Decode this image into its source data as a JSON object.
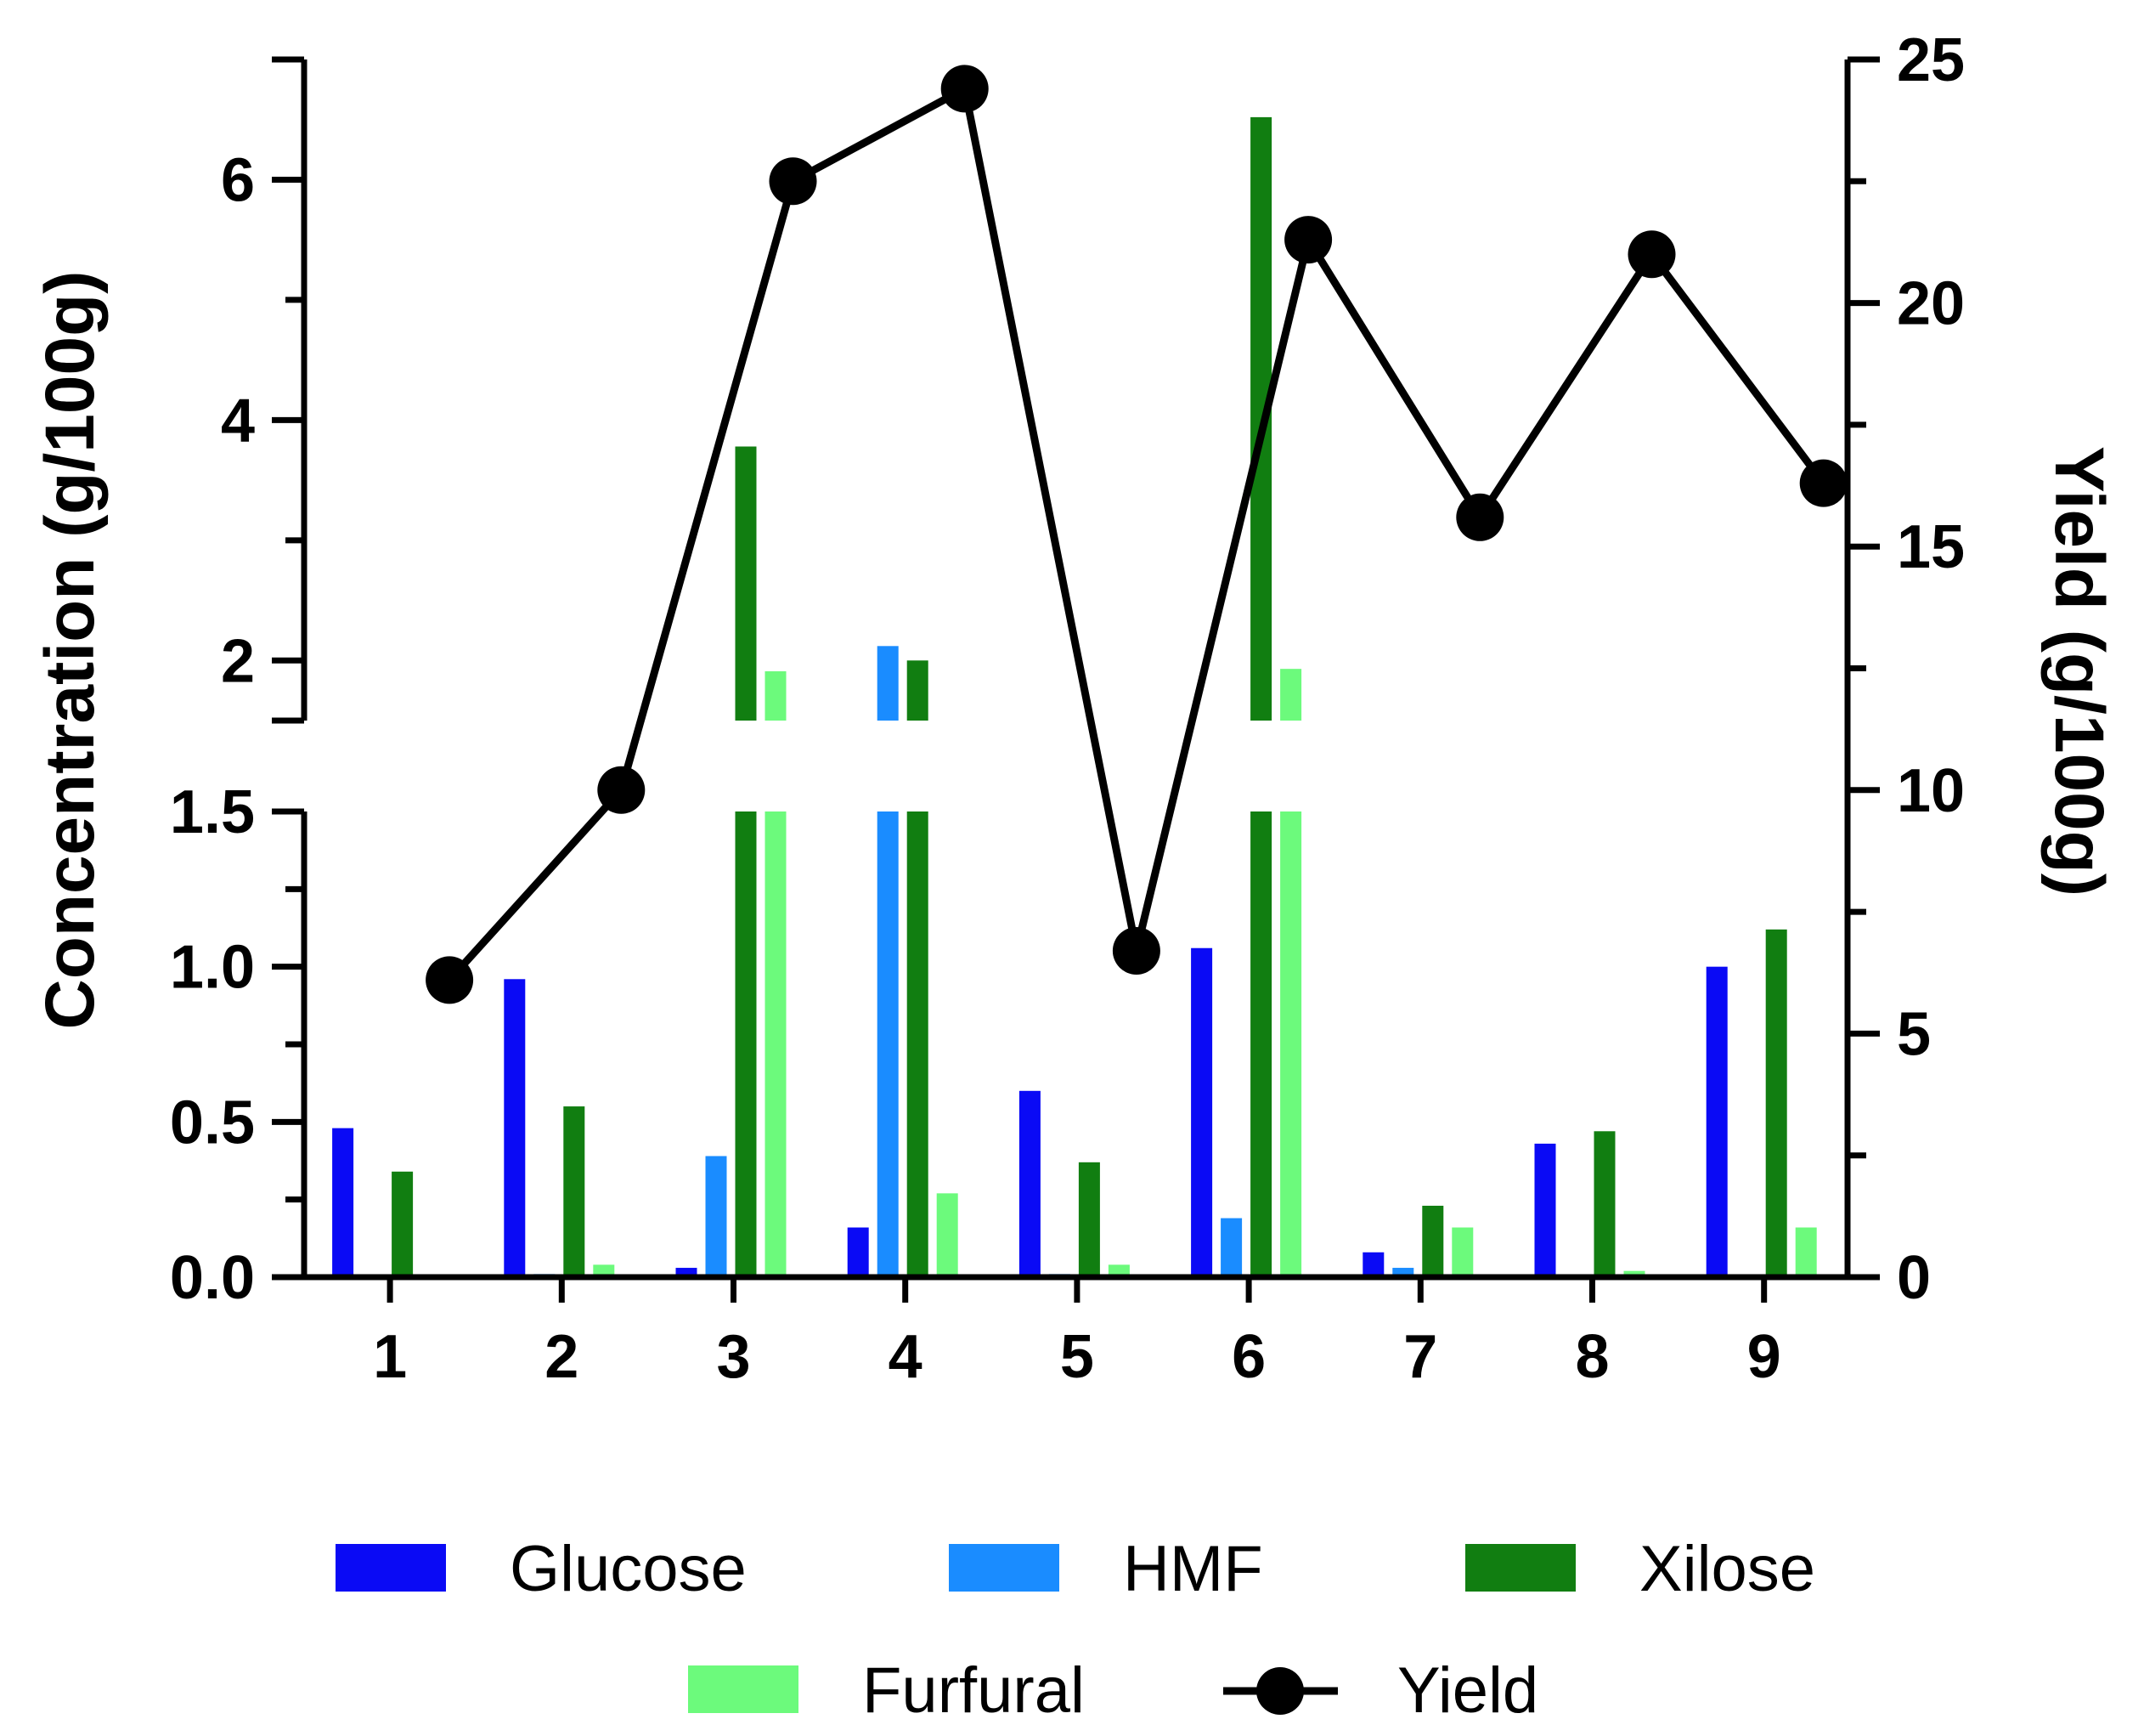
{
  "chart_data": {
    "type": "bar",
    "categories": [
      "1",
      "2",
      "3",
      "4",
      "5",
      "6",
      "7",
      "8",
      "9"
    ],
    "left_axis": {
      "label": "Concentration (g/100g)",
      "broken": true,
      "lower_range": [
        0,
        1.5
      ],
      "upper_range": [
        1.5,
        7
      ],
      "lower_ticks": [
        "0.0",
        "0.5",
        "1.0",
        "1.5"
      ],
      "upper_ticks": [
        "2",
        "4",
        "6"
      ]
    },
    "right_axis": {
      "label": "Yield (g/100g)",
      "range": [
        0,
        25
      ],
      "ticks": [
        "0",
        "5",
        "10",
        "15",
        "20",
        "25"
      ]
    },
    "series": [
      {
        "name": "Glucose",
        "type": "bar",
        "axis": "left",
        "color": "#0A0AF5",
        "values": [
          0.48,
          0.96,
          0.03,
          0.16,
          0.6,
          1.06,
          0.08,
          0.43,
          1.0
        ]
      },
      {
        "name": "HMF",
        "type": "bar",
        "axis": "left",
        "color": "#1A8CFF",
        "values": [
          0.0,
          0.01,
          0.39,
          2.12,
          0.01,
          0.19,
          0.03,
          0.0,
          0.0
        ]
      },
      {
        "name": "Xilose",
        "type": "bar",
        "axis": "left",
        "color": "#117E11",
        "values": [
          0.34,
          0.55,
          3.78,
          2.0,
          0.37,
          6.52,
          0.23,
          0.47,
          1.12
        ]
      },
      {
        "name": "Furfural",
        "type": "bar",
        "axis": "left",
        "color": "#6CFA7C",
        "values": [
          0.0,
          0.04,
          1.91,
          0.27,
          0.04,
          1.93,
          0.16,
          0.02,
          0.16
        ]
      },
      {
        "name": "Yield",
        "type": "line",
        "axis": "right",
        "color": "#000000",
        "values": [
          6.1,
          10.0,
          22.5,
          24.4,
          6.7,
          21.3,
          15.6,
          21.0,
          16.3
        ]
      }
    ],
    "legend": {
      "position": "bottom",
      "items": [
        "Glucose",
        "HMF",
        "Xilose",
        "Furfural",
        "Yield"
      ]
    }
  }
}
